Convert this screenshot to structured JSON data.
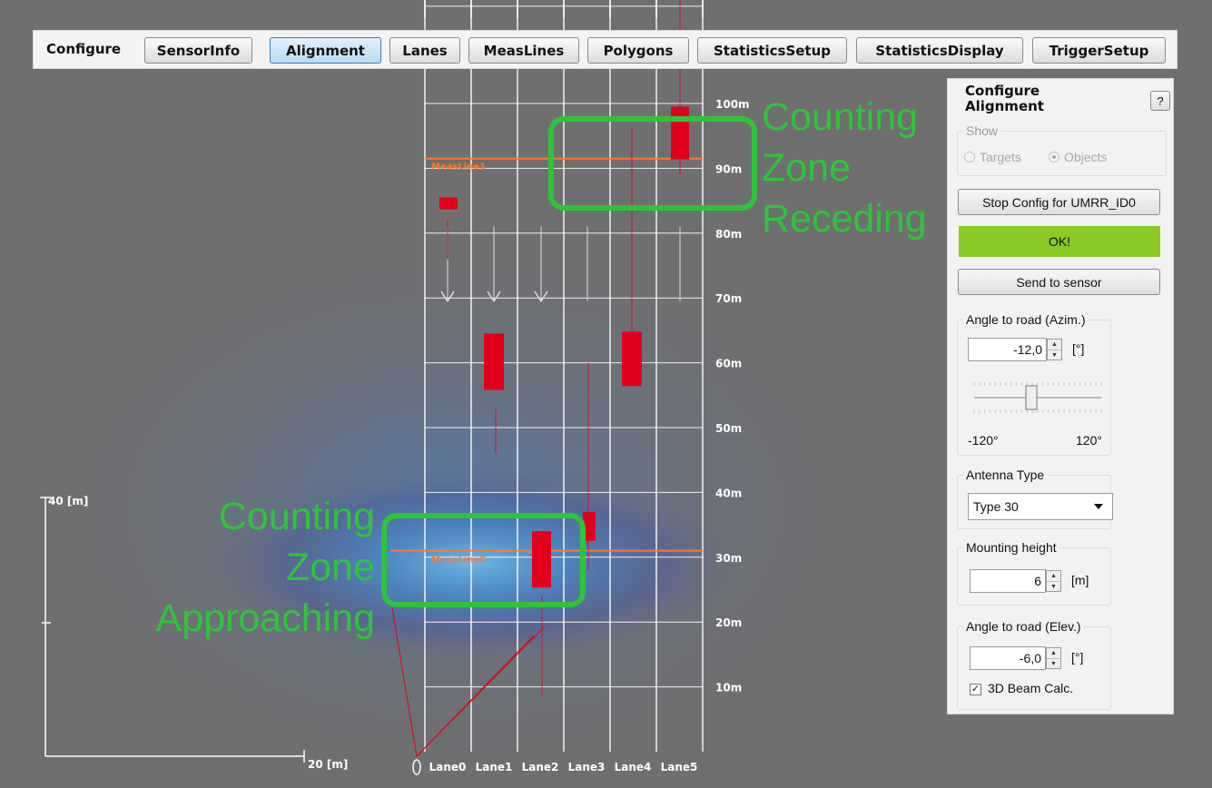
{
  "toolbar": {
    "label": "Configure",
    "buttons": [
      "SensorInfo",
      "Alignment",
      "Lanes",
      "MeasLines",
      "Polygons",
      "StatisticsSetup",
      "StatisticsDisplay",
      "TriggerSetup"
    ],
    "active": "Alignment"
  },
  "grid": {
    "distance_labels": [
      "100m",
      "90m",
      "80m",
      "70m",
      "60m",
      "50m",
      "40m",
      "30m",
      "20m",
      "10m"
    ],
    "lanes": [
      "Lane0",
      "Lane1",
      "Lane2",
      "Lane3",
      "Lane4",
      "Lane5"
    ],
    "meas_lines": [
      "MeasLine1",
      "MeasLine0"
    ],
    "axis_y_label": "40 [m]",
    "axis_x_label": "20 [m]"
  },
  "zones": {
    "receding": [
      "Counting",
      "Zone",
      "Receding"
    ],
    "approaching": [
      "Counting",
      "Zone",
      "Approaching"
    ]
  },
  "panel": {
    "title": "Configure Alignment",
    "help_label": "?",
    "show": {
      "title": "Show",
      "options": [
        "Targets",
        "Objects"
      ],
      "selected": "Objects"
    },
    "stop_button": "Stop Config for UMRR_ID0",
    "status": "OK!",
    "send_button": "Send to sensor",
    "azimuth": {
      "title": "Angle to road (Azim.)",
      "value": "-12,0",
      "unit": "[°]",
      "slider_min": "-120°",
      "slider_max": "120°",
      "slider_position": -12
    },
    "antenna": {
      "title": "Antenna Type",
      "value": "Type 30"
    },
    "mounting": {
      "title": "Mounting height",
      "value": "6",
      "unit": "[m]"
    },
    "elevation": {
      "title": "Angle to road (Elev.)",
      "value": "-6,0",
      "unit": "[°]",
      "checkbox_label": "3D Beam Calc.",
      "checked": true
    }
  },
  "colors": {
    "zone_green": "#2ec43a",
    "meas_line": "#ff7733",
    "object_red": "#e0001b",
    "ok_green": "#8ac926"
  }
}
